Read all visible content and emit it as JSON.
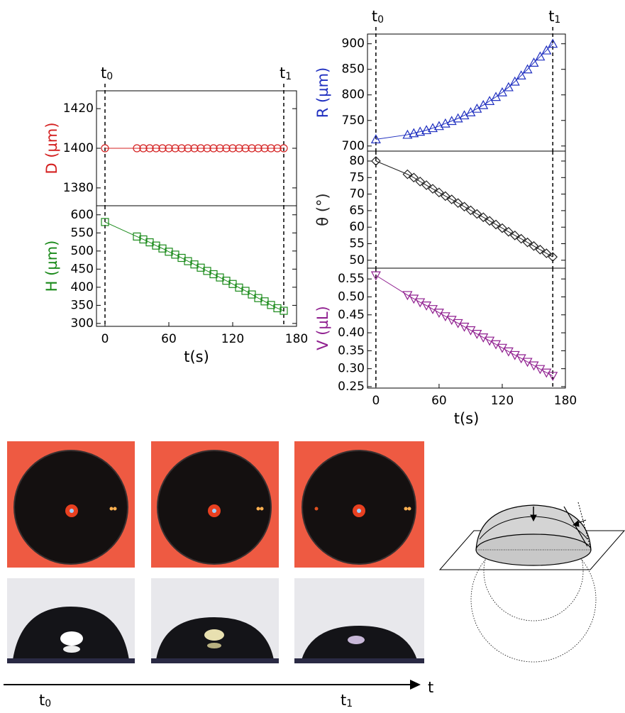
{
  "chart_data": [
    {
      "type": "scatter",
      "ylabel": "D (µm)",
      "color": "#d42020",
      "marker": "circle",
      "x": [
        0,
        30,
        36,
        42,
        48,
        54,
        60,
        66,
        72,
        78,
        84,
        90,
        96,
        102,
        108,
        114,
        120,
        126,
        132,
        138,
        144,
        150,
        156,
        162,
        168
      ],
      "values": [
        1400,
        1400,
        1400,
        1400,
        1400,
        1400,
        1400,
        1400,
        1400,
        1400,
        1400,
        1400,
        1400,
        1400,
        1400,
        1400,
        1400,
        1400,
        1400,
        1400,
        1400,
        1400,
        1400,
        1400,
        1400
      ],
      "xlim": [
        -8,
        180
      ],
      "ylim": [
        1371,
        1429
      ],
      "yticks": [
        1380,
        1400,
        1420
      ],
      "vlines": [
        0,
        168
      ]
    },
    {
      "type": "scatter",
      "ylabel": "H (µm)",
      "xlabel": "t(s)",
      "color": "#1a8a1a",
      "marker": "square",
      "x": [
        0,
        30,
        36,
        42,
        48,
        54,
        60,
        66,
        72,
        78,
        84,
        90,
        96,
        102,
        108,
        114,
        120,
        126,
        132,
        138,
        144,
        150,
        156,
        162,
        168
      ],
      "values": [
        580,
        540,
        532,
        524,
        515,
        507,
        498,
        490,
        481,
        472,
        463,
        454,
        445,
        436,
        427,
        418,
        409,
        399,
        390,
        380,
        370,
        361,
        351,
        342,
        335
      ],
      "xlim": [
        -8,
        180
      ],
      "ylim": [
        292,
        625
      ],
      "xticks": [
        0,
        60,
        120,
        180
      ],
      "yticks": [
        300,
        350,
        400,
        450,
        500,
        550,
        600
      ],
      "vlines": [
        0,
        168
      ]
    },
    {
      "type": "scatter",
      "ylabel": "R (µm)",
      "color": "#2030c0",
      "marker": "triangle-up",
      "x": [
        0,
        30,
        36,
        42,
        48,
        54,
        60,
        66,
        72,
        78,
        84,
        90,
        96,
        102,
        108,
        114,
        120,
        126,
        132,
        138,
        144,
        150,
        156,
        162,
        168
      ],
      "values": [
        713,
        722,
        725,
        728,
        731,
        735,
        739,
        744,
        749,
        754,
        760,
        766,
        773,
        780,
        788,
        796,
        805,
        815,
        826,
        838,
        850,
        863,
        875,
        887,
        900
      ],
      "xlim": [
        -8,
        180
      ],
      "ylim": [
        690,
        919
      ],
      "yticks": [
        700,
        750,
        800,
        850,
        900
      ],
      "vlines": [
        0,
        168
      ]
    },
    {
      "type": "scatter",
      "ylabel": "θ (°)",
      "color": "#222222",
      "marker": "diamond",
      "x": [
        0,
        30,
        36,
        42,
        48,
        54,
        60,
        66,
        72,
        78,
        84,
        90,
        96,
        102,
        108,
        114,
        120,
        126,
        132,
        138,
        144,
        150,
        156,
        162,
        168
      ],
      "values": [
        80,
        76,
        75,
        73.8,
        72.7,
        71.6,
        70.5,
        69.4,
        68.4,
        67.3,
        66.2,
        65.1,
        64,
        63,
        61.9,
        60.8,
        59.7,
        58.6,
        57.5,
        56.5,
        55.4,
        54.3,
        53.2,
        52.1,
        51
      ],
      "xlim": [
        -8,
        180
      ],
      "ylim": [
        47.6,
        83
      ],
      "yticks": [
        50,
        55,
        60,
        65,
        70,
        75,
        80
      ],
      "vlines": [
        0,
        168
      ]
    },
    {
      "type": "scatter",
      "ylabel": "V (µL)",
      "xlabel": "t(s)",
      "color": "#902090",
      "marker": "triangle-down",
      "x": [
        0,
        30,
        36,
        42,
        48,
        54,
        60,
        66,
        72,
        78,
        84,
        90,
        96,
        102,
        108,
        114,
        120,
        126,
        132,
        138,
        144,
        150,
        156,
        162,
        168
      ],
      "values": [
        0.56,
        0.505,
        0.495,
        0.485,
        0.476,
        0.466,
        0.456,
        0.446,
        0.436,
        0.427,
        0.417,
        0.407,
        0.397,
        0.387,
        0.378,
        0.368,
        0.358,
        0.348,
        0.338,
        0.329,
        0.319,
        0.309,
        0.299,
        0.289,
        0.28
      ],
      "xlim": [
        -8,
        180
      ],
      "ylim": [
        0.246,
        0.58
      ],
      "xticks": [
        0,
        60,
        120,
        180
      ],
      "yticks": [
        0.25,
        {
          "value": 0.3,
          "label": "0.30"
        },
        0.35,
        {
          "value": 0.4,
          "label": "0.40"
        },
        0.45,
        {
          "value": 0.5,
          "label": "0.50"
        },
        0.55
      ],
      "vlines": [
        0,
        168
      ]
    }
  ],
  "time_marks": [
    {
      "base": "t",
      "sub": "0"
    },
    {
      "base": "t",
      "sub": "1"
    }
  ],
  "time_axis_label": "t"
}
